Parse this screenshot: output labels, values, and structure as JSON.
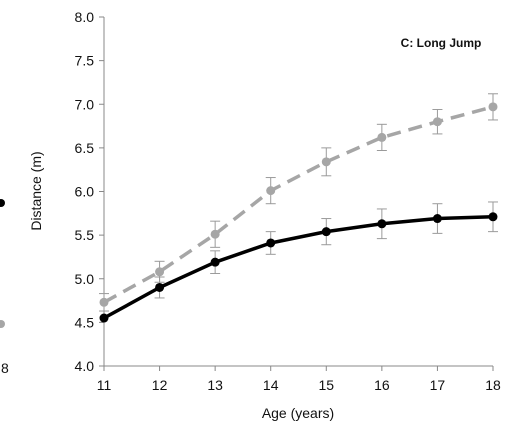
{
  "chart_data": {
    "type": "line",
    "title": "C: Long Jump",
    "xlabel": "Age (years)",
    "ylabel": "Distance (m)",
    "xlim": [
      11,
      18
    ],
    "ylim": [
      4.0,
      8.0
    ],
    "x_ticks": [
      "11",
      "12",
      "13",
      "14",
      "15",
      "16",
      "17",
      "18"
    ],
    "y_ticks": [
      "4.0",
      "4.5",
      "5.0",
      "5.5",
      "6.0",
      "6.5",
      "7.0",
      "7.5",
      "8.0"
    ],
    "x": [
      11,
      12,
      13,
      14,
      15,
      16,
      17,
      18
    ],
    "grid": false,
    "series": [
      {
        "color": "#000000",
        "line_style": "solid",
        "values": [
          4.55,
          4.9,
          5.19,
          5.41,
          5.54,
          5.63,
          5.69,
          5.71
        ],
        "error": [
          0.0,
          0.12,
          0.13,
          0.13,
          0.15,
          0.17,
          0.17,
          0.17
        ]
      },
      {
        "color": "#a6a6a6",
        "line_style": "dashed",
        "values": [
          4.73,
          5.08,
          5.51,
          6.01,
          6.34,
          6.62,
          6.8,
          6.97
        ],
        "error": [
          0.1,
          0.12,
          0.15,
          0.15,
          0.16,
          0.15,
          0.14,
          0.15
        ]
      }
    ]
  },
  "edge_fragment": {
    "text": "8",
    "marker_colors": [
      "#000000",
      "#a6a6a6"
    ]
  }
}
